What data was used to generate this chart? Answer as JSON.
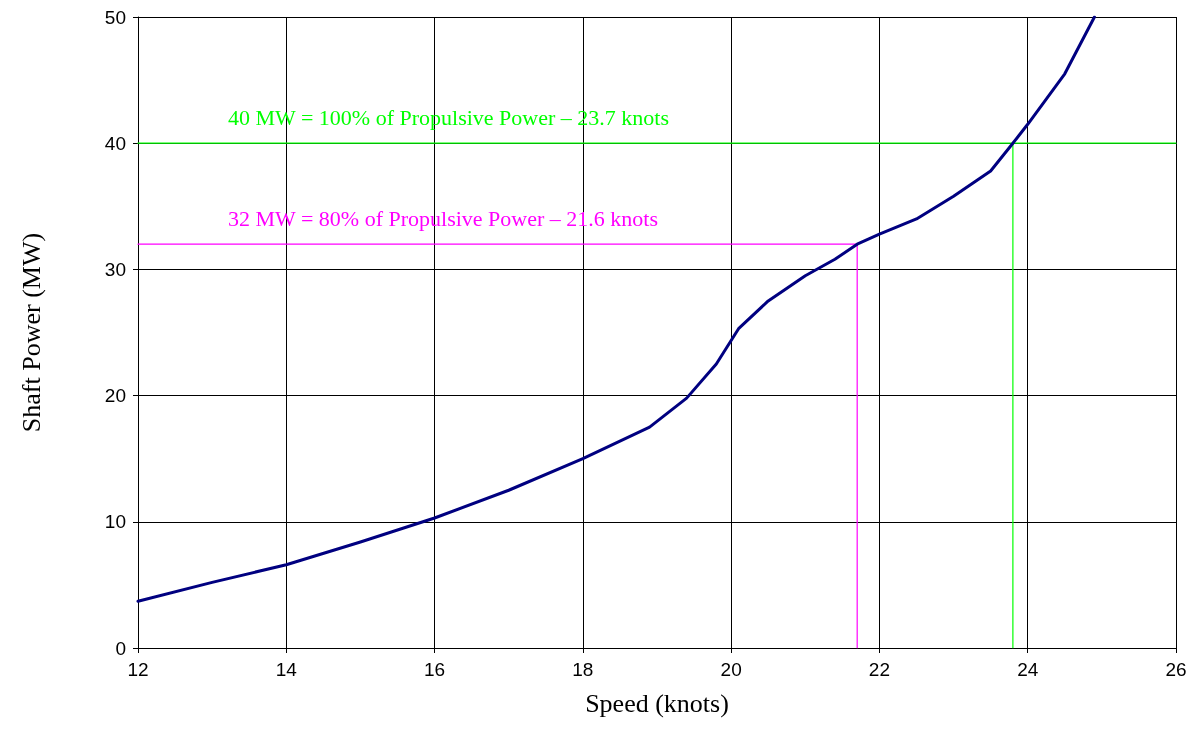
{
  "chart_data": {
    "type": "line",
    "xlabel": "Speed (knots)",
    "ylabel": "Shaft Power (MW)",
    "xlim": [
      12,
      26
    ],
    "xticks": [
      12,
      14,
      16,
      18,
      20,
      22,
      24,
      26
    ],
    "ylim": [
      0,
      50
    ],
    "yticks": [
      0,
      10,
      20,
      30,
      40,
      50
    ],
    "grid": true,
    "marker": "none",
    "line_style": "solid",
    "series": [
      {
        "color": "#000080",
        "x": [
          12,
          13,
          14,
          15,
          16,
          17,
          18,
          18.9,
          19.4,
          19.8,
          20.1,
          20.5,
          21,
          21.4,
          21.7,
          22,
          22.5,
          23,
          23.5,
          23.8,
          24,
          24.5,
          24.9
        ],
        "values": [
          3.7,
          5.2,
          6.6,
          8.4,
          10.3,
          12.5,
          15,
          17.5,
          19.8,
          22.5,
          25.3,
          27.5,
          29.5,
          30.8,
          32,
          32.8,
          34,
          35.8,
          37.8,
          40,
          41.5,
          45.5,
          50
        ]
      },
      {
        "color": "#00ff00",
        "x": [
          12,
          26
        ],
        "values": [
          40,
          40
        ]
      },
      {
        "color": "#00ff00",
        "x": [
          23.8,
          23.8
        ],
        "values": [
          40,
          0
        ]
      },
      {
        "color": "#ff00ff",
        "x": [
          12,
          21.7
        ],
        "values": [
          32,
          32
        ]
      },
      {
        "color": "#ff00ff",
        "x": [
          21.7,
          21.7
        ],
        "values": [
          32,
          0
        ]
      }
    ],
    "annotations": [
      "40 MW = 100% of Propulsive Power – 23.7 knots",
      "32 MW = 80% of Propulsive Power – 21.6 knots"
    ]
  }
}
